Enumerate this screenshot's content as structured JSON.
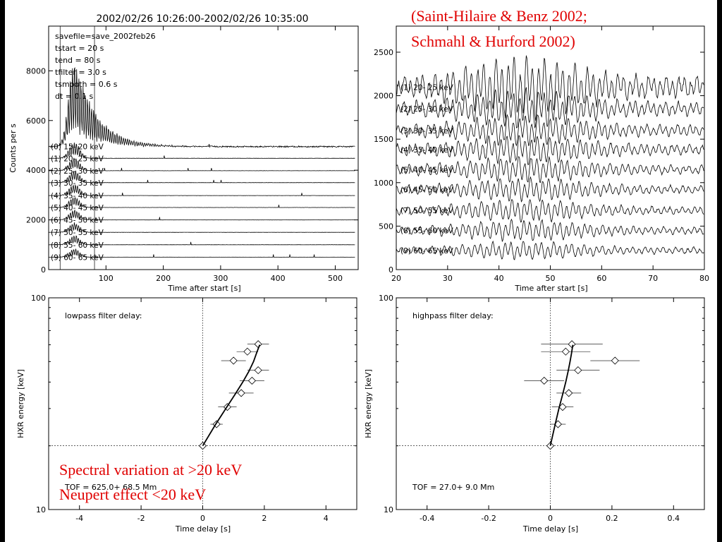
{
  "citation": {
    "line1": "(Saint-Hilaire & Benz 2002;",
    "line2": "Schmahl & Hurford 2002)"
  },
  "annotation": {
    "line1": "Spectral variation at >20 keV",
    "line2": "Neupert effect <20 keV"
  },
  "colors": {
    "annotation": "#e00000",
    "plot": "#000000",
    "background": "#ffffff"
  },
  "chart_data": [
    {
      "type": "line",
      "title": "2002/02/26 10:26:00-2002/02/26 10:35:00",
      "xlabel": "Time after start [s]",
      "ylabel": "Counts per s",
      "xlim": [
        0,
        540
      ],
      "ylim": [
        0,
        9800
      ],
      "xticks": [
        100,
        200,
        300,
        400,
        500
      ],
      "yticks": [
        0,
        2000,
        4000,
        6000,
        8000
      ],
      "markers_x": [
        20,
        80
      ],
      "info": [
        "savefile=save_2002feb26",
        "tstart  =   20 s",
        "tend    =   80 s",
        "tfilter =  3.0 s",
        "tsmooth =  0.6 s",
        "dt      =  0.1 s"
      ],
      "series": [
        {
          "label": "(0)   15-   20 keV",
          "baseline": 4950,
          "peak_add": 3500
        },
        {
          "label": "(1)   20-   25 keV",
          "baseline": 4480,
          "peak_add": 650
        },
        {
          "label": "(2)   25-   30 keV",
          "baseline": 3980,
          "peak_add": 520
        },
        {
          "label": "(3)   30-   35 keV",
          "baseline": 3500,
          "peak_add": 480
        },
        {
          "label": "(4)   35-   40 keV",
          "baseline": 2980,
          "peak_add": 460
        },
        {
          "label": "(5)   40-   45 keV",
          "baseline": 2500,
          "peak_add": 430
        },
        {
          "label": "(6)   45-   50 keV",
          "baseline": 2000,
          "peak_add": 400
        },
        {
          "label": "(7)   50-   55 keV",
          "baseline": 1500,
          "peak_add": 380
        },
        {
          "label": "(8)   55-   60 keV",
          "baseline": 1000,
          "peak_add": 360
        },
        {
          "label": "(9)   60-   65 keV",
          "baseline": 500,
          "peak_add": 340
        }
      ]
    },
    {
      "type": "line",
      "title": "",
      "xlabel": "Time after start [s]",
      "ylabel": "",
      "xlim": [
        20,
        80
      ],
      "ylim": [
        0,
        2800
      ],
      "xticks": [
        20,
        30,
        40,
        50,
        60,
        70,
        80
      ],
      "yticks": [
        0,
        500,
        1000,
        1500,
        2000,
        2500
      ],
      "series": [
        {
          "label": "(1)   20-   25 keV",
          "baseline": 2100,
          "amp": 230
        },
        {
          "label": "(2)   25-   30 keV",
          "baseline": 1850,
          "amp": 150
        },
        {
          "label": "(3)   30-   35 keV",
          "baseline": 1600,
          "amp": 120
        },
        {
          "label": "(4)   35-   40 keV",
          "baseline": 1380,
          "amp": 110
        },
        {
          "label": "(5)   40-   45 keV",
          "baseline": 1150,
          "amp": 100
        },
        {
          "label": "(6)   45-   50 keV",
          "baseline": 920,
          "amp": 90
        },
        {
          "label": "(7)   50-   55 keV",
          "baseline": 680,
          "amp": 85
        },
        {
          "label": "(8)   55-   60 keV",
          "baseline": 450,
          "amp": 80
        },
        {
          "label": "(9)   60-   65 keV",
          "baseline": 220,
          "amp": 70
        }
      ]
    },
    {
      "type": "scatter",
      "title": "lowpass filter delay:",
      "xlabel": "Time delay [s]",
      "ylabel": "HXR energy [keV]",
      "xlim": [
        -5,
        5
      ],
      "ylim": [
        10,
        100
      ],
      "yscale": "log",
      "xticks": [
        -4,
        -2,
        0,
        2,
        4
      ],
      "yticks": [
        10,
        100
      ],
      "tof_text": "TOF =  625.0+  68.5 Mm",
      "points": [
        {
          "x": 0.0,
          "y": 20,
          "xerr": 0.1
        },
        {
          "x": 0.45,
          "y": 25.3,
          "xerr": 0.2
        },
        {
          "x": 0.8,
          "y": 30.5,
          "xerr": 0.3
        },
        {
          "x": 1.25,
          "y": 35.5,
          "xerr": 0.4
        },
        {
          "x": 1.6,
          "y": 40.6,
          "xerr": 0.4
        },
        {
          "x": 1.8,
          "y": 45.5,
          "xerr": 0.35
        },
        {
          "x": 1.0,
          "y": 50.5,
          "xerr": 0.4
        },
        {
          "x": 1.45,
          "y": 55.7,
          "xerr": 0.35
        },
        {
          "x": 1.8,
          "y": 60.4,
          "xerr": 0.35
        }
      ],
      "fit": [
        [
          0.0,
          20
        ],
        [
          0.4,
          25
        ],
        [
          0.75,
          30
        ],
        [
          1.05,
          35
        ],
        [
          1.3,
          40
        ],
        [
          1.5,
          45
        ],
        [
          1.65,
          50
        ],
        [
          1.75,
          55
        ],
        [
          1.85,
          60
        ]
      ]
    },
    {
      "type": "scatter",
      "title": "highpass filter delay:",
      "xlabel": "Time delay [s]",
      "ylabel": "HXR energy [keV]",
      "xlim": [
        -0.5,
        0.5
      ],
      "ylim": [
        10,
        100
      ],
      "yscale": "log",
      "xticks": [
        -0.4,
        -0.2,
        0.0,
        0.2,
        0.4
      ],
      "yticks": [
        10,
        100
      ],
      "tof_text": "TOF =   27.0+   9.0 Mm",
      "points": [
        {
          "x": 0.0,
          "y": 20,
          "xerr": 0.005
        },
        {
          "x": 0.025,
          "y": 25.3,
          "xerr": 0.025
        },
        {
          "x": 0.04,
          "y": 30.5,
          "xerr": 0.035
        },
        {
          "x": 0.06,
          "y": 35.5,
          "xerr": 0.04
        },
        {
          "x": -0.02,
          "y": 40.6,
          "xerr": 0.065
        },
        {
          "x": 0.09,
          "y": 45.5,
          "xerr": 0.07
        },
        {
          "x": 0.21,
          "y": 50.5,
          "xerr": 0.08
        },
        {
          "x": 0.05,
          "y": 55.7,
          "xerr": 0.08
        },
        {
          "x": 0.07,
          "y": 60.4,
          "xerr": 0.1
        }
      ],
      "fit": [
        [
          0.0,
          20
        ],
        [
          0.015,
          25
        ],
        [
          0.028,
          30
        ],
        [
          0.04,
          35
        ],
        [
          0.05,
          40
        ],
        [
          0.058,
          45
        ],
        [
          0.064,
          50
        ],
        [
          0.069,
          55
        ],
        [
          0.073,
          60
        ]
      ]
    }
  ]
}
